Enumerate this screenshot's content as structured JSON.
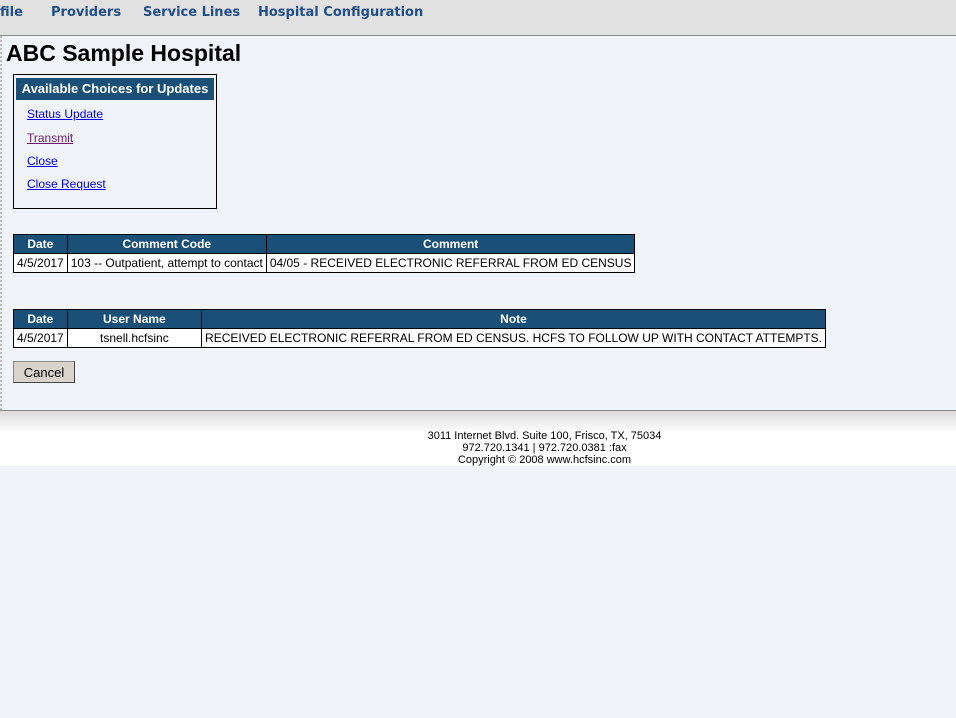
{
  "nav": {
    "items": [
      "file",
      "Providers",
      "Service Lines",
      "Hospital Configuration"
    ]
  },
  "page_title": "ABC Sample Hospital",
  "choices": {
    "title": "Available Choices for Updates",
    "links": [
      "Status Update",
      "Transmit",
      "Close",
      "Close Request"
    ]
  },
  "comments": {
    "headers": [
      "Date",
      "Comment Code",
      "Comment"
    ],
    "rows": [
      [
        "4/5/2017",
        "103 -- Outpatient, attempt to contact",
        "04/05 - RECEIVED ELECTRONIC REFERRAL FROM ED CENSUS"
      ]
    ]
  },
  "notes": {
    "headers": [
      "Date",
      "User Name",
      "Note"
    ],
    "rows": [
      [
        "4/5/2017",
        "tsnell.hcfsinc",
        "RECEIVED ELECTRONIC REFERRAL FROM ED CENSUS. HCFS TO FOLLOW UP WITH CONTACT ATTEMPTS."
      ]
    ]
  },
  "cancel_label": "Cancel",
  "footer": {
    "address": "3011 Internet Blvd. Suite 100, Frisco, TX, 75034",
    "phone": "972.720.1341 | 972.720.0381 :fax",
    "copyright": "Copyright © 2008 www.hcfsinc.com"
  },
  "colors": {
    "header": "#1a5078",
    "nav_text": "#1f4f8a"
  }
}
